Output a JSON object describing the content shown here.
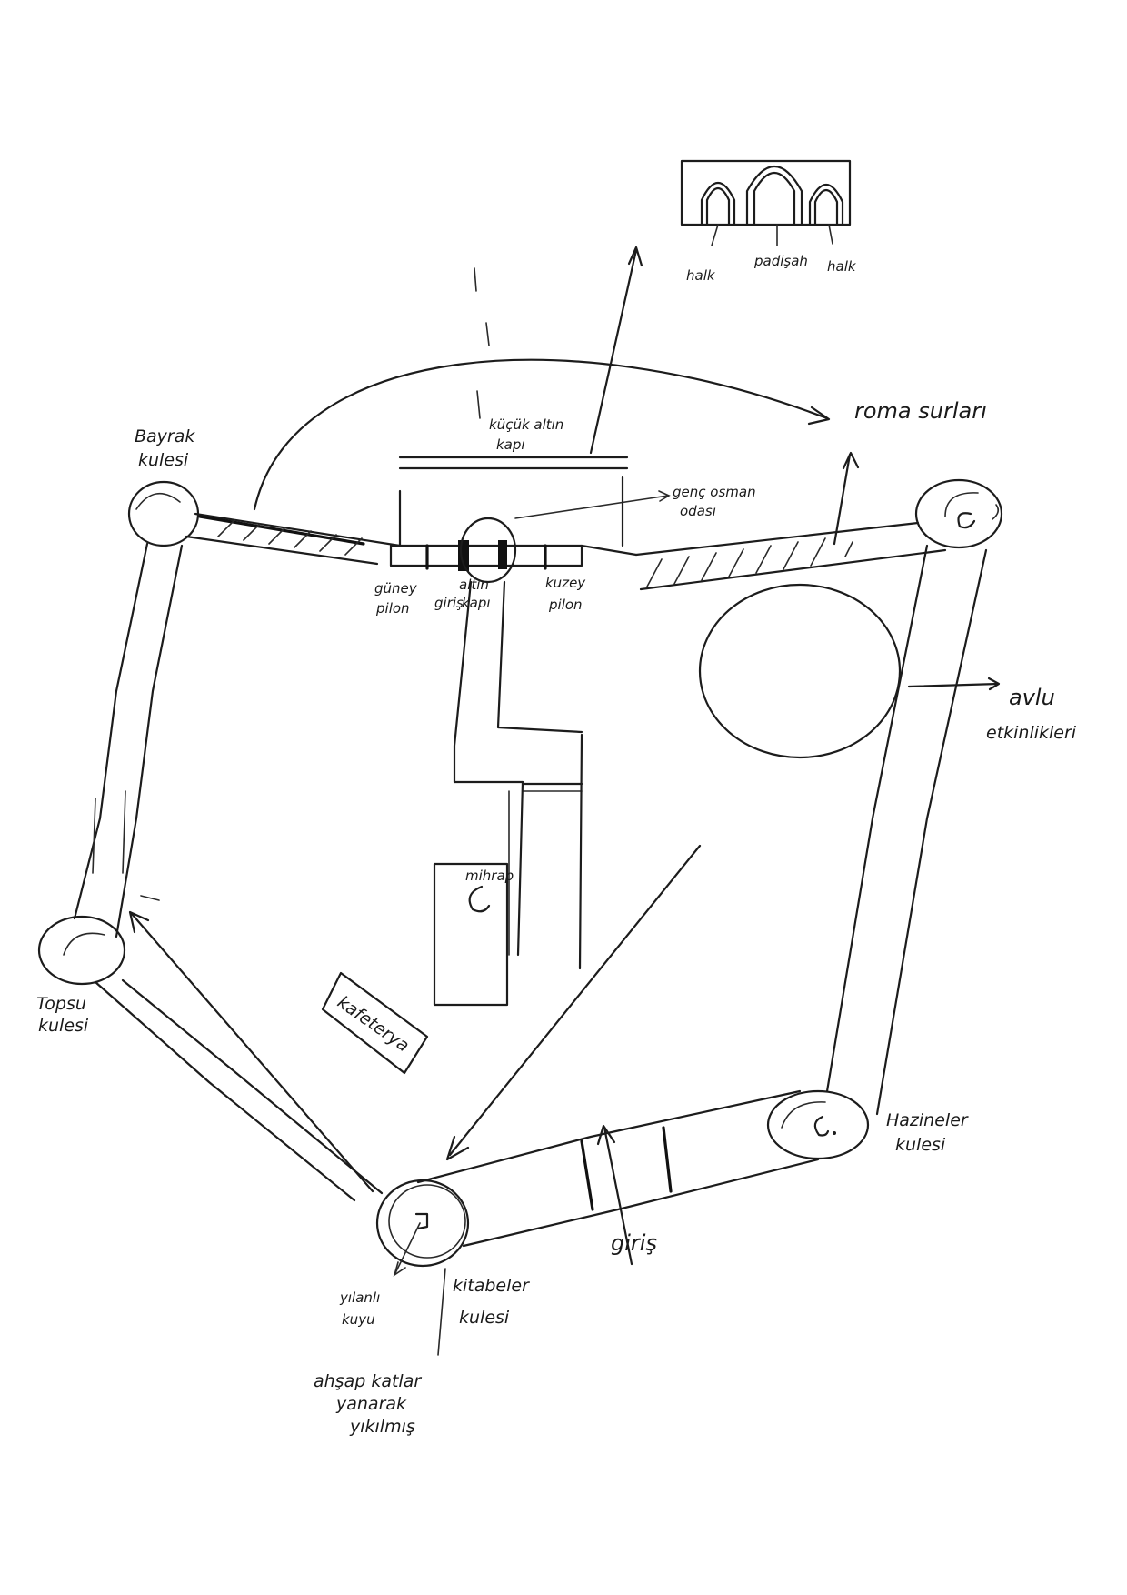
{
  "labels": {
    "bayrak": [
      "Bayrak",
      "kulesi"
    ],
    "topsu": [
      "Topsu",
      "kulesi"
    ],
    "hazineler": [
      "Hazineler",
      "kulesi"
    ],
    "kitabeler": [
      "kitabeler",
      "kulesi"
    ],
    "yilanli": [
      "yılanlı",
      "kuyu"
    ],
    "ahsap": [
      "ahşap katlar",
      "yanarak",
      "yıkılmış"
    ],
    "giris": "giriş",
    "kucuk": [
      "küçük altın",
      "kapı"
    ],
    "genc": [
      "genç osman",
      "odası"
    ],
    "guney": [
      "güney",
      "pilon"
    ],
    "giris_small": "giriş",
    "altin": [
      "altın",
      "kapı"
    ],
    "kuzey": [
      "kuzey",
      "pilon"
    ],
    "mihrap": "mihrap",
    "kafeterya": "kafeterya",
    "roma": "roma surları",
    "avlu": [
      "avlu",
      "etkinlikleri"
    ],
    "halk_left": "halk",
    "padisah": "padişah",
    "halk_right": "halk"
  }
}
